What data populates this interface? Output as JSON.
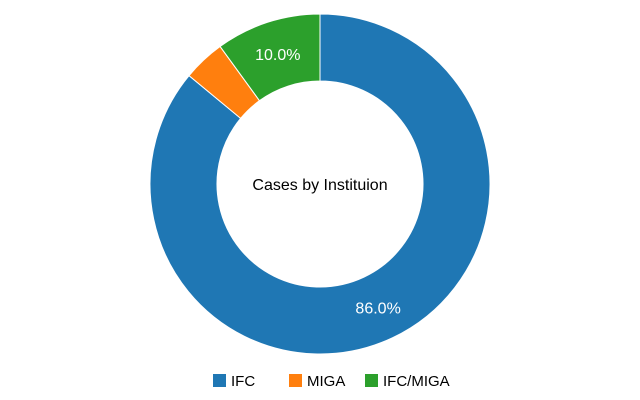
{
  "chart_data": {
    "type": "pie",
    "title": "Cases by Instituion",
    "categories": [
      "IFC",
      "MIGA",
      "IFC/MIGA"
    ],
    "values": [
      86.0,
      4.0,
      10.0
    ],
    "unit": "%",
    "data_labels": [
      "86.0%",
      "",
      "10.0%"
    ],
    "colors": [
      "#1f77b4",
      "#ff7f0e",
      "#2ca02c"
    ],
    "legend_position": "bottom",
    "donut": true
  }
}
